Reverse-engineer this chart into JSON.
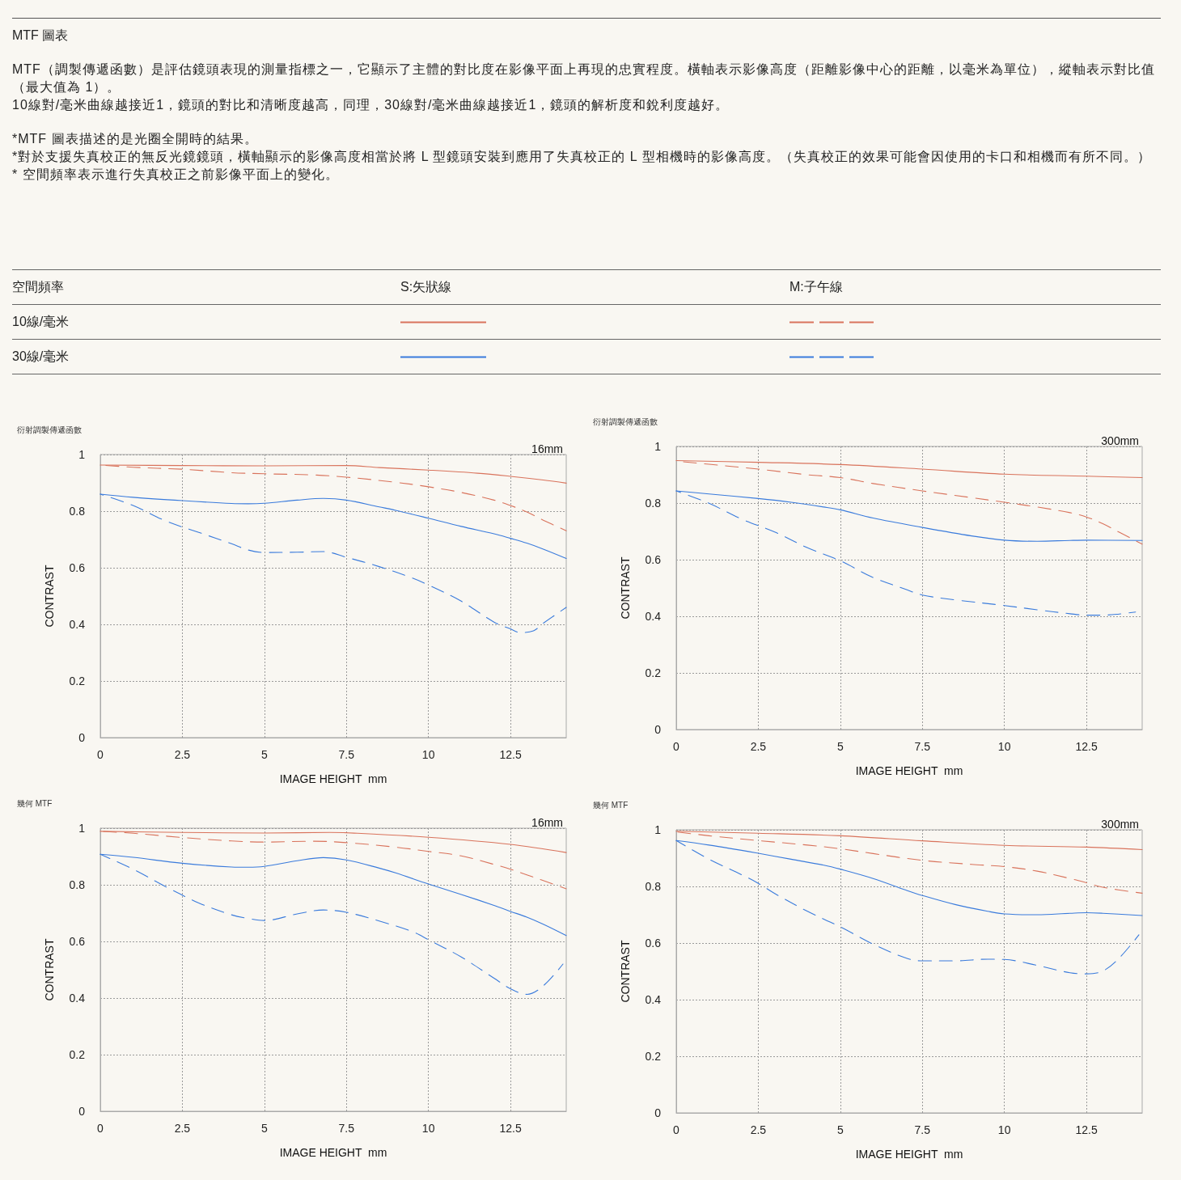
{
  "chart_data": [
    {
      "type": "other",
      "title": "MTF 圖表",
      "annotations": [
        "MTF（調製傳遞函數）是評估鏡頭表現的測量指標之一，它顯示了主體的對比度在影像平面上再現的忠實程度。橫軸表示影像高度（距離影像中心的距離，以毫米為單位），縱軸表示對比值（最大值為 1）。\n10線對/毫米曲線越接近1，鏡頭的對比和清晰度越高，同理，30線對/毫米曲線越接近1，鏡頭的解析度和銳利度越好。",
        "*MTF 圖表描述的是光圈全開時的結果。\n*對於支援失真校正的無反光鏡鏡頭，橫軸顯示的影像高度相當於將 L 型鏡頭安裝到應用了失真校正的 L 型相機時的影像高度。（失真校正的效果可能會因使用的卡口和相機而有所不同。）\n* 空間頻率表示進行失真校正之前影像平面上的變化。",
        "空間頻率",
        "S:矢狀線",
        "M:子午線",
        "10線/毫米",
        "30線/毫米"
      ]
    },
    {
      "type": "line",
      "title": "衍射調製傳遞函數",
      "subtitle": "16mm",
      "xlabel": "IMAGE HEIGHT  mm",
      "ylabel": "CONTRAST",
      "xlim": [
        0,
        14.2
      ],
      "xticks": [
        0,
        2.5,
        5,
        7.5,
        10,
        12.5
      ],
      "ylim": [
        0,
        1
      ],
      "yticks": [
        0,
        0.2,
        0.4,
        0.6,
        0.8,
        1
      ],
      "grid": true,
      "marker": "none",
      "series": [
        {
          "color": "#d9735c",
          "line_style": "solid",
          "x": [
            0,
            2.5,
            5,
            7.5,
            8.5,
            10,
            11.5,
            12.5,
            13.5,
            14.2
          ],
          "values": [
            0.963,
            0.961,
            0.96,
            0.961,
            0.954,
            0.945,
            0.934,
            0.923,
            0.91,
            0.899
          ]
        },
        {
          "color": "#d9735c",
          "line_style": "dashed",
          "x": [
            0,
            1,
            2.5,
            4,
            5,
            6.5,
            7.5,
            9,
            10,
            11,
            12,
            12.5,
            13,
            13.5,
            14.2
          ],
          "values": [
            0.963,
            0.955,
            0.948,
            0.936,
            0.932,
            0.928,
            0.92,
            0.902,
            0.886,
            0.866,
            0.839,
            0.82,
            0.797,
            0.768,
            0.731
          ]
        },
        {
          "color": "#3a7bdc",
          "line_style": "solid",
          "x": [
            0,
            1,
            2.5,
            4,
            4.5,
            5,
            6,
            6.8,
            7.5,
            8.5,
            9,
            10,
            11,
            12,
            12.5,
            13,
            13.5,
            14.2
          ],
          "values": [
            0.86,
            0.849,
            0.837,
            0.827,
            0.826,
            0.828,
            0.839,
            0.845,
            0.839,
            0.815,
            0.803,
            0.775,
            0.746,
            0.72,
            0.704,
            0.687,
            0.666,
            0.633
          ]
        },
        {
          "color": "#3a7bdc",
          "line_style": "dashed",
          "x": [
            0,
            1,
            2,
            3,
            4,
            4.5,
            5,
            6,
            6.8,
            7.5,
            8.5,
            9.5,
            10,
            11,
            12,
            12.5,
            12.8,
            13.2,
            13.5,
            14.2
          ],
          "values": [
            0.86,
            0.82,
            0.765,
            0.725,
            0.685,
            0.663,
            0.654,
            0.655,
            0.657,
            0.637,
            0.604,
            0.564,
            0.539,
            0.482,
            0.408,
            0.384,
            0.371,
            0.377,
            0.404,
            0.46
          ]
        }
      ]
    },
    {
      "type": "line",
      "title": "衍射調製傳遞函數",
      "subtitle": "300mm",
      "xlabel": "IMAGE HEIGHT  mm",
      "ylabel": "CONTRAST",
      "xlim": [
        0,
        14.2
      ],
      "xticks": [
        0,
        2.5,
        5,
        7.5,
        10,
        12.5
      ],
      "ylim": [
        0,
        1
      ],
      "yticks": [
        0,
        0.2,
        0.4,
        0.6,
        0.8,
        1
      ],
      "grid": true,
      "marker": "none",
      "series": [
        {
          "color": "#d9735c",
          "line_style": "solid",
          "x": [
            0,
            2.5,
            5,
            7.5,
            10,
            12.5,
            14.2
          ],
          "values": [
            0.95,
            0.944,
            0.936,
            0.92,
            0.902,
            0.895,
            0.89
          ]
        },
        {
          "color": "#d9735c",
          "line_style": "dashed",
          "x": [
            0,
            1,
            2.5,
            4,
            5,
            6,
            7.5,
            9,
            10,
            11,
            12,
            12.5,
            13,
            13.5,
            14.2
          ],
          "values": [
            0.948,
            0.937,
            0.92,
            0.9,
            0.89,
            0.869,
            0.843,
            0.819,
            0.803,
            0.786,
            0.766,
            0.751,
            0.727,
            0.697,
            0.655
          ]
        },
        {
          "color": "#3a7bdc",
          "line_style": "solid",
          "x": [
            0,
            1,
            2.5,
            3.5,
            4.5,
            5,
            6,
            7.5,
            9,
            10,
            11,
            12,
            12.5,
            14.2
          ],
          "values": [
            0.843,
            0.832,
            0.816,
            0.803,
            0.786,
            0.776,
            0.747,
            0.714,
            0.684,
            0.669,
            0.665,
            0.668,
            0.669,
            0.668
          ]
        },
        {
          "color": "#3a7bdc",
          "line_style": "dashed",
          "x": [
            0,
            1,
            2,
            3,
            4,
            5,
            6,
            7,
            7.5,
            8.5,
            10,
            11,
            12,
            12.5,
            13,
            13.5,
            14
          ],
          "values": [
            0.843,
            0.799,
            0.743,
            0.698,
            0.642,
            0.596,
            0.537,
            0.495,
            0.475,
            0.458,
            0.438,
            0.423,
            0.409,
            0.404,
            0.404,
            0.408,
            0.415
          ]
        }
      ]
    },
    {
      "type": "line",
      "title": "幾何 MTF",
      "subtitle": "16mm",
      "xlabel": "IMAGE HEIGHT  mm",
      "ylabel": "CONTRAST",
      "xlim": [
        0,
        14.2
      ],
      "xticks": [
        0,
        2.5,
        5,
        7.5,
        10,
        12.5
      ],
      "ylim": [
        0,
        1
      ],
      "yticks": [
        0,
        0.2,
        0.4,
        0.6,
        0.8,
        1
      ],
      "grid": true,
      "marker": "none",
      "series": [
        {
          "color": "#d9735c",
          "line_style": "solid",
          "x": [
            0,
            2.5,
            5,
            7,
            7.5,
            10,
            12.5,
            14.2
          ],
          "values": [
            0.989,
            0.985,
            0.983,
            0.985,
            0.984,
            0.968,
            0.943,
            0.914
          ]
        },
        {
          "color": "#d9735c",
          "line_style": "dashed",
          "x": [
            0,
            1,
            2.5,
            4,
            5,
            6.5,
            7.5,
            9,
            10,
            11,
            12,
            12.5,
            13,
            13.5,
            14.2
          ],
          "values": [
            0.989,
            0.982,
            0.967,
            0.955,
            0.951,
            0.954,
            0.949,
            0.933,
            0.918,
            0.902,
            0.872,
            0.855,
            0.835,
            0.815,
            0.786
          ]
        },
        {
          "color": "#3a7bdc",
          "line_style": "solid",
          "x": [
            0,
            1,
            2.5,
            4,
            4.5,
            5,
            6,
            6.8,
            7.5,
            8.5,
            9,
            10,
            11,
            12,
            12.5,
            13,
            13.5,
            14.2
          ],
          "values": [
            0.908,
            0.897,
            0.876,
            0.863,
            0.862,
            0.865,
            0.885,
            0.896,
            0.888,
            0.859,
            0.842,
            0.803,
            0.766,
            0.727,
            0.706,
            0.686,
            0.661,
            0.621
          ]
        },
        {
          "color": "#3a7bdc",
          "line_style": "dashed",
          "x": [
            0,
            1,
            2,
            3,
            4,
            4.5,
            5,
            6,
            6.8,
            7.5,
            8.5,
            9.5,
            10,
            11,
            12,
            12.5,
            13,
            13.5,
            14.1
          ],
          "values": [
            0.908,
            0.855,
            0.793,
            0.736,
            0.694,
            0.681,
            0.674,
            0.697,
            0.711,
            0.703,
            0.672,
            0.635,
            0.606,
            0.545,
            0.47,
            0.433,
            0.413,
            0.443,
            0.52
          ]
        }
      ]
    },
    {
      "type": "line",
      "title": "幾何 MTF",
      "subtitle": "300mm",
      "xlabel": "IMAGE HEIGHT  mm",
      "ylabel": "CONTRAST",
      "xlim": [
        0,
        14.2
      ],
      "xticks": [
        0,
        2.5,
        5,
        7.5,
        10,
        12.5
      ],
      "ylim": [
        0,
        1
      ],
      "yticks": [
        0,
        0.2,
        0.4,
        0.6,
        0.8,
        1
      ],
      "grid": true,
      "marker": "none",
      "series": [
        {
          "color": "#d9735c",
          "line_style": "solid",
          "x": [
            0,
            2.5,
            5,
            7.5,
            10,
            12.5,
            14.2
          ],
          "values": [
            0.995,
            0.988,
            0.979,
            0.961,
            0.945,
            0.939,
            0.93
          ]
        },
        {
          "color": "#d9735c",
          "line_style": "dashed",
          "x": [
            0,
            1,
            2.5,
            4,
            5,
            6,
            7.5,
            9,
            10,
            11,
            12,
            12.5,
            13,
            14.2
          ],
          "values": [
            0.993,
            0.979,
            0.962,
            0.946,
            0.933,
            0.916,
            0.892,
            0.878,
            0.87,
            0.854,
            0.828,
            0.813,
            0.797,
            0.776
          ]
        },
        {
          "color": "#3a7bdc",
          "line_style": "solid",
          "x": [
            0,
            1,
            2.5,
            3.5,
            4.5,
            5,
            6,
            7,
            7.5,
            8.5,
            9.5,
            10,
            11,
            12,
            12.5,
            13,
            14.2
          ],
          "values": [
            0.962,
            0.946,
            0.917,
            0.896,
            0.875,
            0.861,
            0.828,
            0.787,
            0.768,
            0.736,
            0.712,
            0.703,
            0.7,
            0.705,
            0.707,
            0.705,
            0.697
          ]
        },
        {
          "color": "#3a7bdc",
          "line_style": "dashed",
          "x": [
            0,
            1,
            2,
            2.5,
            3,
            4,
            5,
            6,
            7,
            7.5,
            8.5,
            9.5,
            10,
            11,
            12,
            12.5,
            13,
            13.5,
            14.1
          ],
          "values": [
            0.962,
            0.896,
            0.841,
            0.811,
            0.775,
            0.712,
            0.657,
            0.596,
            0.547,
            0.537,
            0.537,
            0.543,
            0.542,
            0.521,
            0.495,
            0.491,
            0.501,
            0.547,
            0.629
          ]
        }
      ]
    }
  ]
}
